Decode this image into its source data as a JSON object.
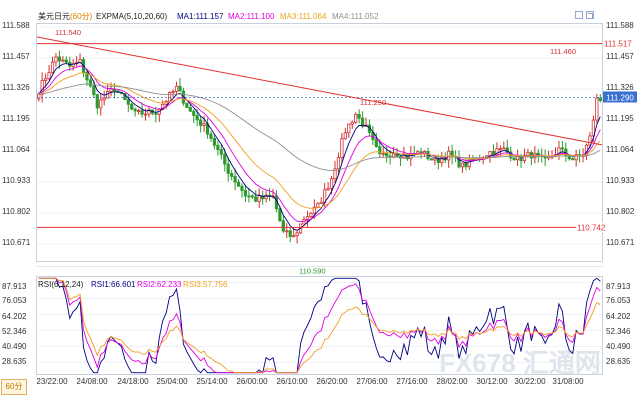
{
  "header": {
    "instrument": "美元日元",
    "period": "(60分)",
    "indicator": "EXPMA(5,10,20,60)",
    "ma1_label": "MA1:",
    "ma1_value": "111.157",
    "ma2_label": "MA2:",
    "ma2_value": "111.100",
    "ma3_label": "MA3:",
    "ma3_value": "111.064",
    "ma4_label": "MA4:",
    "ma4_value": "111.052"
  },
  "rsi_header": {
    "indicator": "RSI(6,12,24)",
    "rsi1_label": "RSI1:",
    "rsi1_value": "66.601",
    "rsi2_label": "RSI2:",
    "rsi2_value": "62.233",
    "rsi3_label": "RSI3:",
    "rsi3_value": "57.756"
  },
  "period_selector": "60分",
  "watermark": "FX678 汇通网",
  "colors": {
    "up": "#d43030",
    "down": "#2c9a2c",
    "ma1": "#000080",
    "ma2": "#e000e0",
    "ma3": "#f0a020",
    "ma4": "#909090",
    "rsi1": "#000080",
    "rsi2": "#e000e0",
    "rsi3": "#f0a020",
    "trendline": "#e03030",
    "current_line": "#3a70d0",
    "current_tag": "#3a70d0"
  },
  "chart_data": [
    {
      "type": "candlestick",
      "title": "美元日元(60分)",
      "y_ticks": [
        "111.588",
        "111.457",
        "111.326",
        "111.195",
        "111.064",
        "110.933",
        "110.802",
        "110.671"
      ],
      "ylim": [
        110.6,
        111.6
      ],
      "x_labels": [
        "23/22:00",
        "24/08:00",
        "24/18:00",
        "25/04:00",
        "25/14:00",
        "26/00:00",
        "26/10:00",
        "26/20:00",
        "27/06:00",
        "27/16:00",
        "28/02:00",
        "30/12:00",
        "30/22:00",
        "31/08:00"
      ],
      "annotations": [
        {
          "text": "111.540",
          "value": 111.54,
          "kind": "high"
        },
        {
          "text": "110.590",
          "value": 110.59,
          "kind": "low"
        },
        {
          "text": "111.250",
          "value": 111.25,
          "kind": "swing"
        },
        {
          "text": "111.460",
          "value": 111.46,
          "kind": "high"
        },
        {
          "text": "111.517",
          "value": 111.517,
          "kind": "level"
        },
        {
          "text": "110.742",
          "value": 110.742,
          "kind": "level"
        },
        {
          "text": "111.290",
          "value": 111.29,
          "kind": "current"
        }
      ],
      "levels": {
        "upper": 111.517,
        "lower": 110.742,
        "current": 111.29
      },
      "trendline": {
        "start": 111.545,
        "end": 111.09
      },
      "anchors": [
        [
          0,
          111.32
        ],
        [
          5,
          111.46
        ],
        [
          9,
          111.42
        ],
        [
          12,
          111.44
        ],
        [
          17,
          111.26
        ],
        [
          22,
          111.33
        ],
        [
          28,
          111.22
        ],
        [
          34,
          111.23
        ],
        [
          40,
          111.33
        ],
        [
          44,
          111.23
        ],
        [
          49,
          111.15
        ],
        [
          55,
          110.98
        ],
        [
          60,
          110.88
        ],
        [
          63,
          110.86
        ],
        [
          68,
          110.87
        ],
        [
          71,
          110.72
        ],
        [
          74,
          110.7
        ],
        [
          77,
          110.78
        ],
        [
          81,
          110.83
        ],
        [
          85,
          110.95
        ],
        [
          89,
          111.15
        ],
        [
          92,
          111.22
        ],
        [
          95,
          111.16
        ],
        [
          99,
          111.04
        ],
        [
          103,
          111.06
        ],
        [
          107,
          111.04
        ],
        [
          111,
          111.06
        ],
        [
          115,
          111.02
        ],
        [
          119,
          111.05
        ],
        [
          123,
          111.0
        ],
        [
          127,
          111.03
        ],
        [
          131,
          111.06
        ],
        [
          135,
          111.07
        ],
        [
          139,
          111.03
        ],
        [
          143,
          111.05
        ],
        [
          147,
          111.02
        ],
        [
          151,
          111.07
        ],
        [
          155,
          111.03
        ],
        [
          158,
          111.05
        ],
        [
          160,
          111.12
        ],
        [
          162,
          111.28
        ]
      ],
      "volatility": 0.032
    },
    {
      "type": "line",
      "title": "RSI(6,12,24)",
      "y_ticks": [
        "87.913",
        "76.053",
        "64.202",
        "52.346",
        "40.490",
        "28.635"
      ],
      "ylim": [
        20,
        92
      ],
      "series": [
        {
          "name": "RSI1",
          "role": "rsi1"
        },
        {
          "name": "RSI2",
          "role": "rsi2"
        },
        {
          "name": "RSI3",
          "role": "rsi3"
        }
      ]
    }
  ]
}
